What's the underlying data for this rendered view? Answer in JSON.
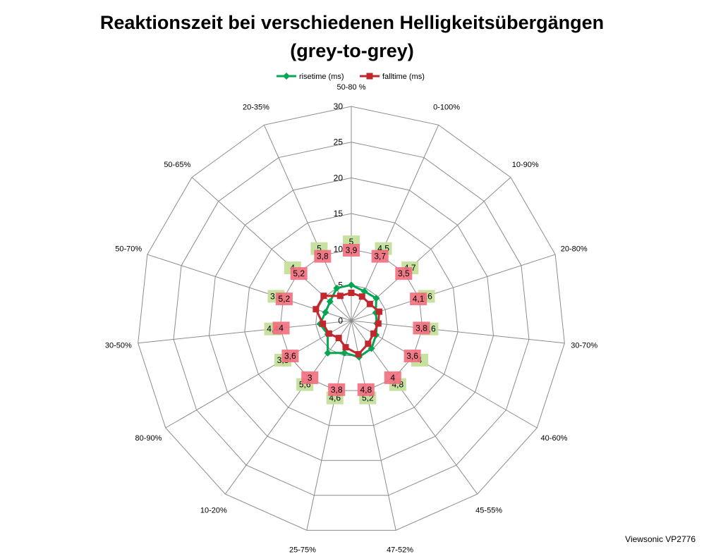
{
  "chart_data": {
    "type": "radar",
    "title_line1": "Reaktionszeit bei verschiedenen Helligkeitsübergängen",
    "title_line2": "(grey-to-grey)",
    "categories": [
      "50-80 %",
      "0-100%",
      "10-90%",
      "20-80%",
      "30-70%",
      "40-60%",
      "45-55%",
      "47-52%",
      "25-75%",
      "10-20%",
      "80-90%",
      "30-50%",
      "50-70%",
      "50-65%",
      "20-35%"
    ],
    "rlim": [
      0,
      30
    ],
    "ticks": [
      0,
      5,
      10,
      15,
      20,
      25,
      30
    ],
    "tick_labels": [
      "0",
      "5",
      "10",
      "15",
      "20",
      "25",
      "30"
    ],
    "grid": true,
    "legend_position": "top",
    "series": [
      {
        "name": "risetime (ms)",
        "color": "#00a651",
        "label_color": "#c4df9b",
        "values": [
          5,
          4.5,
          4.7,
          3.6,
          3.6,
          4,
          4.8,
          5.2,
          4.6,
          5.6,
          3.8,
          4.4,
          3.8,
          4,
          5
        ],
        "labels": [
          "5",
          "4,5",
          "4,7",
          "3,6",
          "3,6",
          "4",
          "4,8",
          "5,2",
          "4,6",
          "5,6",
          "3,8",
          "4,4",
          "3,8",
          "4",
          "5"
        ]
      },
      {
        "name": "falltime (ms)",
        "color": "#c1272d",
        "label_color": "#f26d7d",
        "overlap_color": "#e05a3f",
        "values": [
          3.9,
          3.7,
          3.5,
          4.1,
          3.8,
          3.6,
          4,
          4.8,
          3.8,
          3,
          3.6,
          4,
          5.2,
          5.2,
          3.8
        ],
        "labels": [
          "3,9",
          "3,7",
          "3,5",
          "4,1",
          "3,8",
          "3,6",
          "4",
          "4,8",
          "3,8",
          "3",
          "3,6",
          "4",
          "5,2",
          "5,2",
          "3,8"
        ]
      }
    ]
  },
  "watermark": "Viewsonic VP2776"
}
